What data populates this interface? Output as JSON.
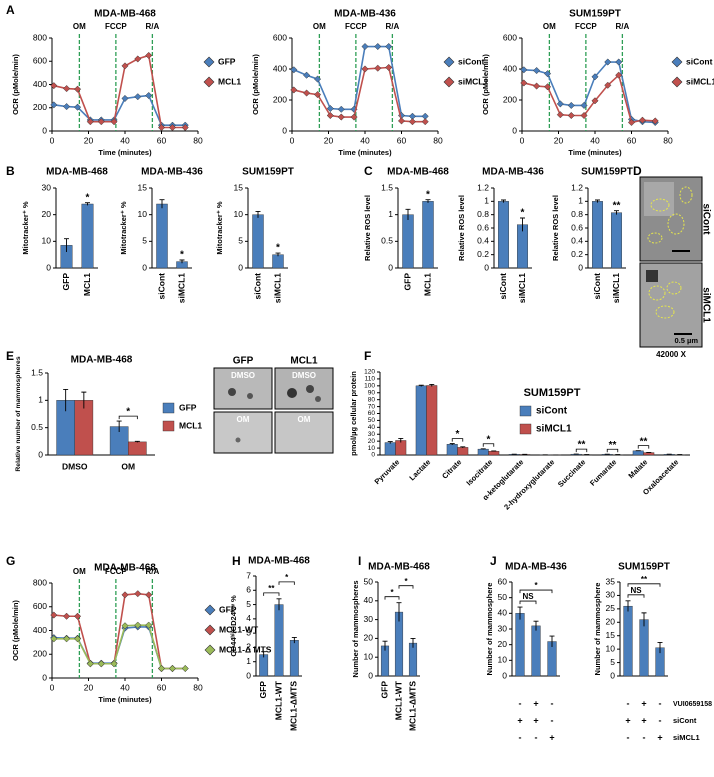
{
  "chart_data": [
    {
      "type": "line",
      "panel": "A",
      "title": "MDA-MB-468",
      "xlabel": "Time (minutes)",
      "ylabel": "OCR (pMole/min)",
      "x": [
        1,
        8,
        14,
        21,
        27,
        34,
        40,
        47,
        53,
        60,
        66,
        73
      ],
      "xlim": [
        0,
        80
      ],
      "xticks": [
        0,
        20,
        40,
        60,
        80
      ],
      "ylim": [
        0,
        800
      ],
      "yticks": [
        0,
        200,
        400,
        600,
        800
      ],
      "legend": "right",
      "events": [
        {
          "value": 15,
          "label": "OM"
        },
        {
          "value": 35,
          "label": "FCCP"
        },
        {
          "value": 55,
          "label": "R/A"
        }
      ],
      "series": [
        {
          "name": "GFP",
          "color": "#4a7ebb",
          "values": [
            225,
            210,
            205,
            95,
            95,
            95,
            280,
            295,
            305,
            50,
            50,
            50
          ]
        },
        {
          "name": "MCL1",
          "color": "#c0504d",
          "values": [
            390,
            365,
            360,
            80,
            80,
            80,
            560,
            620,
            650,
            30,
            30,
            30
          ]
        }
      ]
    },
    {
      "type": "line",
      "title": "MDA-MB-436",
      "xlabel": "Time (minutes)",
      "ylabel": "OCR (pMole/min)",
      "x": [
        1,
        8,
        14,
        21,
        27,
        34,
        40,
        47,
        53,
        60,
        66,
        73
      ],
      "xlim": [
        0,
        80
      ],
      "xticks": [
        0,
        20,
        40,
        60,
        80
      ],
      "ylim": [
        0,
        600
      ],
      "yticks": [
        0,
        200,
        400,
        600
      ],
      "legend": "right",
      "events": [
        {
          "value": 15,
          "label": "OM"
        },
        {
          "value": 35,
          "label": "FCCP"
        },
        {
          "value": 55,
          "label": "R/A"
        }
      ],
      "series": [
        {
          "name": "siCont",
          "color": "#4a7ebb",
          "values": [
            395,
            360,
            335,
            145,
            140,
            140,
            545,
            545,
            545,
            100,
            95,
            95
          ]
        },
        {
          "name": "siMCL1",
          "color": "#c0504d",
          "values": [
            265,
            245,
            235,
            100,
            90,
            90,
            400,
            405,
            410,
            65,
            60,
            60
          ]
        }
      ]
    },
    {
      "type": "line",
      "title": "SUM159PT",
      "xlabel": "Time (minutes)",
      "ylabel": "OCR (pMole/min)",
      "x": [
        1,
        8,
        14,
        21,
        27,
        34,
        40,
        47,
        53,
        60,
        66,
        73
      ],
      "xlim": [
        0,
        80
      ],
      "xticks": [
        0,
        20,
        40,
        60,
        80
      ],
      "ylim": [
        0,
        600
      ],
      "yticks": [
        0,
        200,
        400,
        600
      ],
      "legend": "right",
      "events": [
        {
          "value": 15,
          "label": "OM"
        },
        {
          "value": 35,
          "label": "FCCP"
        },
        {
          "value": 55,
          "label": "R/A"
        }
      ],
      "series": [
        {
          "name": "siCont",
          "color": "#4a7ebb",
          "values": [
            395,
            390,
            370,
            175,
            165,
            165,
            350,
            445,
            445,
            75,
            60,
            55
          ]
        },
        {
          "name": "siMCL1",
          "color": "#c0504d",
          "values": [
            310,
            290,
            285,
            105,
            100,
            100,
            195,
            295,
            360,
            55,
            70,
            65
          ]
        }
      ]
    },
    {
      "type": "bar",
      "panel": "B",
      "title": "MDA-MB-468",
      "ylabel": "Mitotracker⁺ %",
      "categories": [
        "GFP",
        "MCL1"
      ],
      "values": [
        8.5,
        24
      ],
      "errors": [
        2.5,
        0.5
      ],
      "color": "#4a7ebb",
      "ylim": [
        0,
        30
      ],
      "yticks": [
        0,
        10,
        20,
        30
      ],
      "comparisons": [
        {
          "text": "*",
          "bars": [
            1
          ]
        }
      ]
    },
    {
      "type": "bar",
      "title": "MDA-MB-436",
      "ylabel": "Mitotracker⁺ %",
      "categories": [
        "siCont",
        "siMCL1"
      ],
      "values": [
        12,
        1.2
      ],
      "errors": [
        0.8,
        0.3
      ],
      "color": "#4a7ebb",
      "ylim": [
        0,
        15
      ],
      "yticks": [
        0,
        5,
        10,
        15
      ],
      "comparisons": [
        {
          "text": "*",
          "bars": [
            1
          ]
        }
      ]
    },
    {
      "type": "bar",
      "title": "SUM159PT",
      "ylabel": "Mitotracker⁺ %",
      "categories": [
        "siCont",
        "siMCL1"
      ],
      "values": [
        10,
        2.5
      ],
      "errors": [
        0.6,
        0.3
      ],
      "color": "#4a7ebb",
      "ylim": [
        0,
        15
      ],
      "yticks": [
        0,
        5,
        10,
        15
      ],
      "comparisons": [
        {
          "text": "*",
          "bars": [
            1
          ]
        }
      ]
    },
    {
      "type": "bar",
      "panel": "C",
      "title": "MDA-MB-468",
      "ylabel": "Relative ROS level",
      "categories": [
        "GFP",
        "MCL1"
      ],
      "values": [
        1,
        1.25
      ],
      "errors": [
        0.1,
        0.03
      ],
      "color": "#4a7ebb",
      "ylim": [
        0,
        1.5
      ],
      "yticks": [
        0,
        0.5,
        1,
        1.5
      ],
      "comparisons": [
        {
          "text": "*",
          "bars": [
            1
          ]
        }
      ]
    },
    {
      "type": "bar",
      "title": "MDA-MB-436",
      "ylabel": "Relative ROS level",
      "categories": [
        "siCont",
        "siMCL1"
      ],
      "values": [
        1,
        0.65
      ],
      "errors": [
        0.02,
        0.1
      ],
      "color": "#4a7ebb",
      "ylim": [
        0,
        1.2
      ],
      "yticks": [
        0,
        0.2,
        0.4,
        0.6,
        0.8,
        1,
        1.2
      ],
      "comparisons": [
        {
          "text": "*",
          "bars": [
            1
          ]
        }
      ]
    },
    {
      "type": "bar",
      "title": "SUM159PT",
      "ylabel": "Relative ROS level",
      "categories": [
        "siCont",
        "siMCL1"
      ],
      "values": [
        1,
        0.83
      ],
      "errors": [
        0.02,
        0.03
      ],
      "color": "#4a7ebb",
      "ylim": [
        0,
        1.2
      ],
      "yticks": [
        0,
        0.2,
        0.4,
        0.6,
        0.8,
        1,
        1.2
      ],
      "comparisons": [
        {
          "text": "**",
          "bars": [
            1
          ]
        }
      ]
    },
    {
      "type": "bar",
      "panel": "E",
      "title": "MDA-MB-468",
      "ylabel": "Relative number of mammospheres",
      "categories": [
        "DMSO",
        "OM"
      ],
      "series": [
        {
          "name": "GFP",
          "color": "#4a7ebb",
          "values": [
            1,
            0.52
          ],
          "errors": [
            0.2,
            0.1
          ]
        },
        {
          "name": "MCL1",
          "color": "#c0504d",
          "values": [
            1,
            0.24
          ],
          "errors": [
            0.15,
            0.01
          ]
        }
      ],
      "ylim": [
        0,
        1.5
      ],
      "yticks": [
        0,
        0.5,
        1,
        1.5
      ],
      "legend": "right",
      "comparisons": [
        {
          "text": "*",
          "category": 1
        }
      ]
    },
    {
      "type": "bar",
      "panel": "F",
      "title": "SUM159PT",
      "ylabel": "pmol/µg cellular protein",
      "categories": [
        "Pyruvate",
        "Lactate",
        "Citrate",
        "Isocitrate",
        "α-ketoglutarate",
        "2-hydroxyglutarate",
        "Succinate",
        "Fumarate",
        "Malate",
        "Oxaloacetate"
      ],
      "series": [
        {
          "name": "siCont",
          "color": "#4a7ebb",
          "values": [
            18,
            100,
            15.5,
            8.5,
            1,
            0.2,
            1.2,
            1,
            6,
            1
          ],
          "errors": [
            1.5,
            1,
            1,
            0.5,
            0.1,
            0.05,
            0.1,
            0.1,
            0.3,
            0.1
          ]
        },
        {
          "name": "siMCL1",
          "color": "#c0504d",
          "values": [
            21,
            100.5,
            11,
            5.5,
            0.8,
            0.1,
            0.6,
            0.5,
            3.5,
            0.5
          ],
          "errors": [
            3,
            1.5,
            0.8,
            0.3,
            0.1,
            0.05,
            0.1,
            0.05,
            0.2,
            0.1
          ]
        }
      ],
      "ylim": [
        0,
        120
      ],
      "yticks": [
        0,
        10,
        20,
        30,
        40,
        50,
        60,
        70,
        80,
        90,
        100,
        110,
        120
      ],
      "legend": "inside",
      "comparisons": [
        {
          "text": "*",
          "category": 2
        },
        {
          "text": "*",
          "category": 3
        },
        {
          "text": "**",
          "category": 6
        },
        {
          "text": "**",
          "category": 7
        },
        {
          "text": "**",
          "category": 8
        }
      ]
    },
    {
      "type": "line",
      "panel": "G",
      "title": "MDA-MB-468",
      "xlabel": "Time (minutes)",
      "ylabel": "OCR (pMole/min)",
      "x": [
        1,
        8,
        14,
        21,
        27,
        34,
        40,
        47,
        53,
        60,
        66,
        73
      ],
      "xlim": [
        0,
        80
      ],
      "xticks": [
        0,
        20,
        40,
        60,
        80
      ],
      "ylim": [
        0,
        800
      ],
      "yticks": [
        0,
        200,
        400,
        600,
        800
      ],
      "legend": "right",
      "events": [
        {
          "value": 15,
          "label": "OM"
        },
        {
          "value": 35,
          "label": "FCCP"
        },
        {
          "value": 55,
          "label": "R/A"
        }
      ],
      "series": [
        {
          "name": "GFP",
          "color": "#4a7ebb",
          "values": [
            340,
            335,
            335,
            125,
            125,
            125,
            420,
            430,
            430,
            80,
            80,
            80
          ]
        },
        {
          "name": "MCL1-WT",
          "color": "#c0504d",
          "values": [
            530,
            520,
            520,
            120,
            120,
            120,
            700,
            710,
            700,
            80,
            80,
            80
          ]
        },
        {
          "name": "MCL1-Δ MTS",
          "color": "#9bbb59",
          "values": [
            330,
            330,
            330,
            120,
            120,
            120,
            440,
            445,
            445,
            80,
            80,
            80
          ]
        }
      ]
    },
    {
      "type": "bar",
      "panel": "H",
      "title": "MDA-MB-468",
      "ylabel": "CD44ʰⁱ/CD24ˡᵒʷ %",
      "categories": [
        "GFP",
        "MCL1-WT",
        "MCL1-ΔMTS"
      ],
      "values": [
        1.5,
        5,
        2.5
      ],
      "errors": [
        0.2,
        0.4,
        0.2
      ],
      "color": "#4a7ebb",
      "ylim": [
        0,
        7
      ],
      "yticks": [
        0,
        1,
        2,
        3,
        4,
        5,
        6,
        7
      ],
      "comparisons": [
        {
          "text": "**",
          "bars": [
            0,
            1
          ]
        },
        {
          "text": "*",
          "bars": [
            1,
            2
          ]
        }
      ]
    },
    {
      "type": "bar",
      "panel": "I",
      "title": "MDA-MB-468",
      "ylabel": "Number of mammospheres",
      "categories": [
        "GFP",
        "MCL1-WT",
        "MCL1-ΔMTS"
      ],
      "values": [
        16,
        34,
        17.5
      ],
      "errors": [
        2.5,
        5,
        2.5
      ],
      "color": "#4a7ebb",
      "ylim": [
        0,
        50
      ],
      "yticks": [
        0,
        10,
        20,
        30,
        40,
        50
      ],
      "comparisons": [
        {
          "text": "*",
          "bars": [
            0,
            1
          ]
        },
        {
          "text": "*",
          "bars": [
            1,
            2
          ]
        }
      ]
    },
    {
      "type": "bar",
      "panel": "J",
      "title": "MDA-MB-436",
      "ylabel": "Number of mammosphere",
      "values": [
        40,
        32,
        22
      ],
      "errors": [
        4,
        3,
        3.5
      ],
      "color": "#4a7ebb",
      "ylim": [
        0,
        60
      ],
      "yticks": [
        0,
        10,
        20,
        30,
        40,
        50,
        60
      ],
      "comparisons": [
        {
          "text": "NS",
          "bars": [
            0,
            1
          ]
        },
        {
          "text": "*",
          "bars": [
            0,
            2
          ]
        }
      ]
    },
    {
      "type": "bar",
      "title": "SUM159PT",
      "ylabel": "Number of mammosphere",
      "values": [
        26,
        21,
        10.5
      ],
      "errors": [
        2,
        2.5,
        2
      ],
      "color": "#4a7ebb",
      "ylim": [
        0,
        35
      ],
      "yticks": [
        0,
        5,
        10,
        15,
        20,
        25,
        30,
        35
      ],
      "comparisons": [
        {
          "text": "NS",
          "bars": [
            0,
            1
          ]
        },
        {
          "text": "**",
          "bars": [
            0,
            2
          ]
        }
      ]
    }
  ],
  "micrographs": {
    "panel": "D",
    "rows": [
      "siCont",
      "siMCL1"
    ],
    "scale_bar": "0.5 µm",
    "magnification": "42000 X"
  },
  "mammosphere_images": {
    "columns": [
      "GFP",
      "MCL1"
    ],
    "rows": [
      "DMSO",
      "OM"
    ]
  },
  "treatment_table": {
    "rows": [
      {
        "label": "VUI0659158",
        "signs": [
          "-",
          "+",
          "-"
        ]
      },
      {
        "label": "siCont",
        "signs": [
          "+",
          "+",
          "-"
        ]
      },
      {
        "label": "siMCL1",
        "signs": [
          "-",
          "-",
          "+"
        ]
      }
    ]
  }
}
